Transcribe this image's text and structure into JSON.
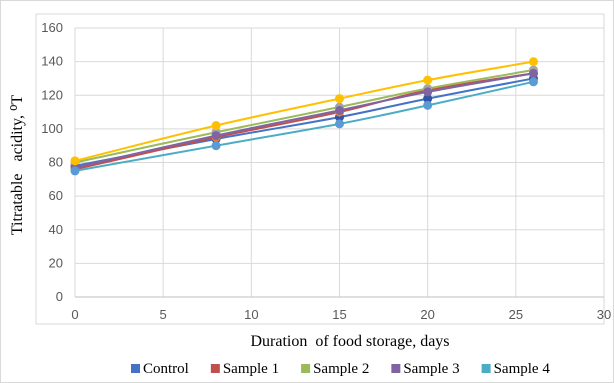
{
  "chart_data": {
    "type": "line",
    "xlabel": "Duration  of food storage, days",
    "ylabel": "Titratable   acidity, ⁰T",
    "xlim": [
      0,
      30
    ],
    "ylim": [
      0,
      160
    ],
    "xticks": [
      0,
      5,
      10,
      15,
      20,
      25,
      30
    ],
    "yticks": [
      0,
      20,
      40,
      60,
      80,
      100,
      120,
      140,
      160
    ],
    "grid": true,
    "legend_position": "bottom",
    "x": [
      0,
      8,
      15,
      20,
      26
    ],
    "series": [
      {
        "name": "Control",
        "color": "#4472C4",
        "marker_color": "#2F55A4",
        "values": [
          78,
          94,
          107,
          118,
          130
        ]
      },
      {
        "name": "Sample 1",
        "color": "#C0504D",
        "marker_color": "#ED7D31",
        "values": [
          76,
          95,
          110,
          123,
          133
        ]
      },
      {
        "name": "Sample 2",
        "color": "#9BBB59",
        "marker_color": "#A5A5A5",
        "values": [
          80,
          98,
          113,
          124,
          135
        ]
      },
      {
        "name": "Sample 3",
        "color": "#8064A2",
        "marker_color": "#8064A2",
        "values": [
          77,
          96,
          111,
          122,
          133
        ]
      },
      {
        "name": "Sample 4",
        "color": "#4BACC6",
        "marker_color": "#5B9BD5",
        "values": [
          75,
          90,
          103,
          114,
          128
        ]
      },
      {
        "name": "",
        "color": "#FFC000",
        "marker_color": "#FFC000",
        "values": [
          81,
          102,
          118,
          129,
          140
        ]
      }
    ]
  }
}
